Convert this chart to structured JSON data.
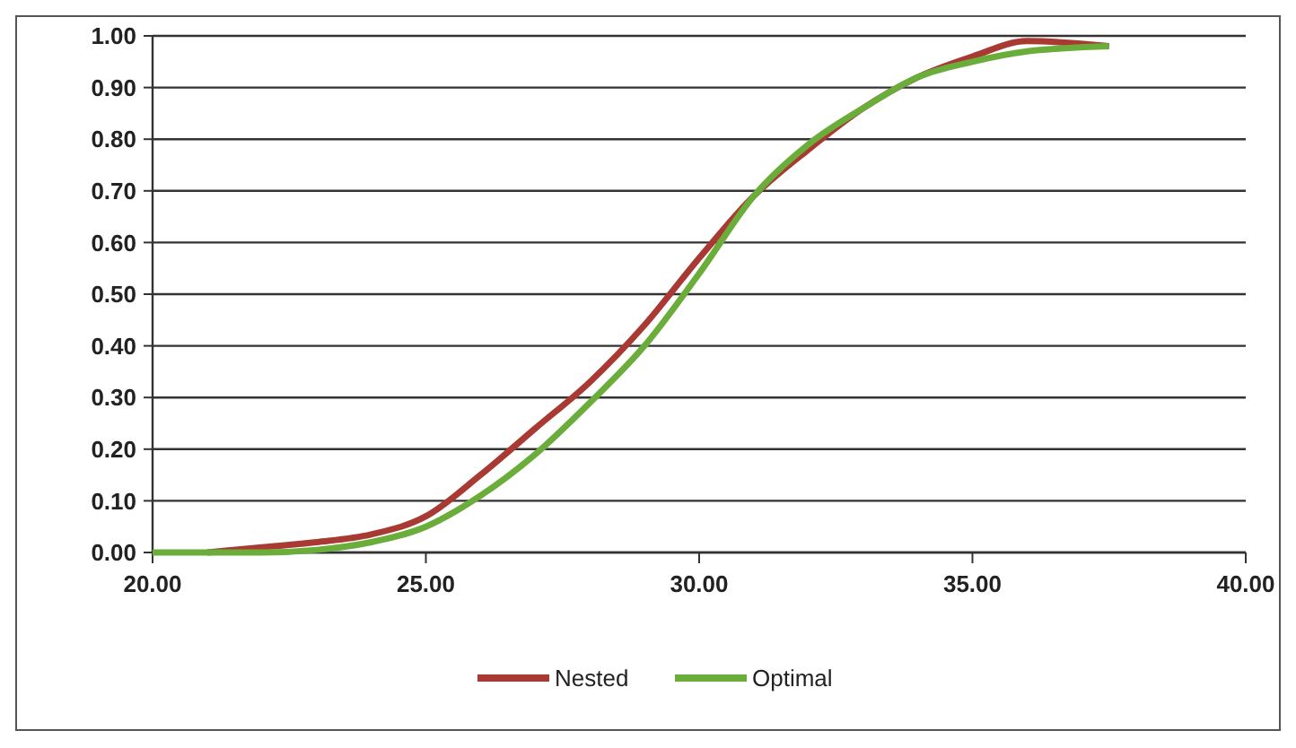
{
  "chart_data": {
    "type": "line",
    "xlim": [
      20,
      40
    ],
    "xticks": [
      {
        "value": 20,
        "label": "20.00"
      },
      {
        "value": 25,
        "label": "25.00"
      },
      {
        "value": 30,
        "label": "30.00"
      },
      {
        "value": 35,
        "label": "35.00"
      },
      {
        "value": 40,
        "label": "40.00"
      }
    ],
    "ylim": [
      0,
      1
    ],
    "yticks": [
      {
        "value": 0,
        "label": "0.00"
      },
      {
        "value": 0.1,
        "label": "0.10"
      },
      {
        "value": 0.2,
        "label": "0.20"
      },
      {
        "value": 0.3,
        "label": "0.30"
      },
      {
        "value": 0.4,
        "label": "0.40"
      },
      {
        "value": 0.5,
        "label": "0.50"
      },
      {
        "value": 0.6,
        "label": "0.60"
      },
      {
        "value": 0.7,
        "label": "0.70"
      },
      {
        "value": 0.8,
        "label": "0.80"
      },
      {
        "value": 0.9,
        "label": "0.90"
      },
      {
        "value": 1,
        "label": "1.00"
      }
    ],
    "grid": "y",
    "legend": "bottom",
    "marker": "none",
    "line_style": "solid",
    "series": [
      {
        "name": "Nested",
        "color": "#a93a33",
        "x": [
          21,
          22,
          23,
          24,
          25,
          26,
          27,
          28,
          29,
          30,
          31,
          32,
          33,
          34,
          35,
          36,
          37.5
        ],
        "values": [
          0.0,
          0.01,
          0.02,
          0.035,
          0.07,
          0.15,
          0.24,
          0.33,
          0.44,
          0.57,
          0.69,
          0.78,
          0.86,
          0.92,
          0.96,
          0.99,
          0.98
        ]
      },
      {
        "name": "Optimal",
        "color": "#6aad3a",
        "x": [
          20,
          22,
          23,
          24,
          25,
          26,
          27,
          28,
          29,
          30,
          31,
          32,
          33,
          34,
          35,
          36,
          37.5
        ],
        "values": [
          0.0,
          0.0,
          0.005,
          0.02,
          0.05,
          0.11,
          0.19,
          0.29,
          0.4,
          0.54,
          0.69,
          0.79,
          0.86,
          0.92,
          0.95,
          0.97,
          0.98
        ]
      }
    ]
  }
}
